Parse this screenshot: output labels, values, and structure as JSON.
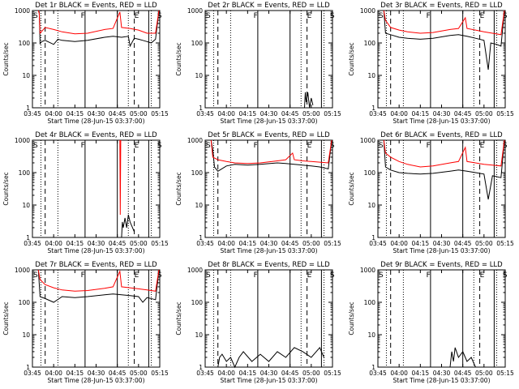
{
  "chart_data": [
    {
      "type": "line",
      "title": "Det 1r BLACK = Events, RED = LLD",
      "xlabel": "Start Time (28-Jun-15 03:37:00)",
      "ylabel": "Counts/sec",
      "yscale": "log",
      "ylim": [
        1,
        1000
      ],
      "xticks": [
        "03:45",
        "04:00",
        "04:15",
        "04:30",
        "04:45",
        "05:00",
        "05:15"
      ],
      "markers": [
        "S",
        "F",
        "E",
        "S"
      ],
      "series": [
        {
          "color": "#000000",
          "points": [
            [
              3.82,
              1000
            ],
            [
              3.83,
              900
            ],
            [
              3.84,
              95
            ],
            [
              3.86,
              110
            ],
            [
              3.9,
              120
            ],
            [
              4.0,
              90
            ],
            [
              4.05,
              130
            ],
            [
              4.1,
              120
            ],
            [
              4.25,
              110
            ],
            [
              4.4,
              120
            ],
            [
              4.6,
              150
            ],
            [
              4.7,
              160
            ],
            [
              4.8,
              150
            ],
            [
              4.88,
              160
            ],
            [
              4.9,
              80
            ],
            [
              4.95,
              140
            ],
            [
              5.0,
              130
            ],
            [
              5.05,
              120
            ],
            [
              5.1,
              110
            ],
            [
              5.15,
              100
            ],
            [
              5.2,
              130
            ],
            [
              5.24,
              1000
            ]
          ]
        },
        {
          "color": "#ff0000",
          "points": [
            [
              3.82,
              1000
            ],
            [
              3.83,
              800
            ],
            [
              3.84,
              200
            ],
            [
              3.9,
              300
            ],
            [
              4.0,
              260
            ],
            [
              4.1,
              220
            ],
            [
              4.25,
              190
            ],
            [
              4.4,
              200
            ],
            [
              4.6,
              260
            ],
            [
              4.7,
              280
            ],
            [
              4.78,
              900
            ],
            [
              4.8,
              300
            ],
            [
              4.9,
              280
            ],
            [
              5.0,
              250
            ],
            [
              5.1,
              200
            ],
            [
              5.2,
              200
            ],
            [
              5.24,
              1000
            ]
          ]
        }
      ]
    },
    {
      "type": "line",
      "title": "Det 2r BLACK = Events, RED = LLD",
      "xlabel": "Start Time (28-Jun-15 03:37:00)",
      "ylabel": "Counts/sec",
      "yscale": "log",
      "ylim": [
        1,
        1000
      ],
      "xticks": [
        "03:45",
        "04:00",
        "04:15",
        "04:30",
        "04:45",
        "05:00",
        "05:15"
      ],
      "markers": [
        "S",
        "F",
        "E",
        "S"
      ],
      "series": [
        {
          "color": "#000000",
          "points": [
            [
              4.92,
              1
            ],
            [
              4.93,
              3
            ],
            [
              4.94,
              1.5
            ],
            [
              4.96,
              3
            ],
            [
              4.98,
              1
            ],
            [
              5.0,
              2
            ],
            [
              5.02,
              1.2
            ]
          ]
        }
      ]
    },
    {
      "type": "line",
      "title": "Det 3r BLACK = Events, RED = LLD",
      "xlabel": "Start Time (28-Jun-15 03:37:00)",
      "ylabel": "Counts/sec",
      "yscale": "log",
      "ylim": [
        1,
        1000
      ],
      "xticks": [
        "03:45",
        "04:00",
        "04:15",
        "04:30",
        "04:45",
        "05:00",
        "05:15"
      ],
      "markers": [
        "S",
        "F",
        "E",
        "S"
      ],
      "series": [
        {
          "color": "#000000",
          "points": [
            [
              3.82,
              1000
            ],
            [
              3.84,
              200
            ],
            [
              3.9,
              180
            ],
            [
              4.0,
              150
            ],
            [
              4.1,
              140
            ],
            [
              4.25,
              130
            ],
            [
              4.4,
              140
            ],
            [
              4.6,
              170
            ],
            [
              4.7,
              180
            ],
            [
              4.8,
              160
            ],
            [
              4.9,
              140
            ],
            [
              5.0,
              120
            ],
            [
              5.05,
              15
            ],
            [
              5.08,
              100
            ],
            [
              5.15,
              90
            ],
            [
              5.2,
              80
            ],
            [
              5.24,
              1000
            ]
          ]
        },
        {
          "color": "#ff0000",
          "points": [
            [
              3.82,
              1000
            ],
            [
              3.84,
              500
            ],
            [
              3.9,
              300
            ],
            [
              4.0,
              250
            ],
            [
              4.1,
              220
            ],
            [
              4.25,
              200
            ],
            [
              4.4,
              210
            ],
            [
              4.6,
              260
            ],
            [
              4.7,
              280
            ],
            [
              4.78,
              600
            ],
            [
              4.8,
              280
            ],
            [
              4.9,
              250
            ],
            [
              5.0,
              220
            ],
            [
              5.1,
              200
            ],
            [
              5.2,
              180
            ],
            [
              5.24,
              1000
            ]
          ]
        }
      ]
    },
    {
      "type": "line",
      "title": "Det 4r BLACK = Events, RED = LLD",
      "xlabel": "Start Time (28-Jun-15 03:37:00)",
      "ylabel": "Counts/sec",
      "yscale": "log",
      "ylim": [
        1,
        1000
      ],
      "xticks": [
        "03:45",
        "04:00",
        "04:15",
        "04:30",
        "04:45",
        "05:00",
        "05:15"
      ],
      "markers": [
        "S",
        "F",
        "E",
        "S"
      ],
      "series": [
        {
          "color": "#000000",
          "points": [
            [
              4.8,
              1
            ],
            [
              4.81,
              3
            ],
            [
              4.82,
              2
            ],
            [
              4.84,
              4
            ],
            [
              4.86,
              2
            ],
            [
              4.88,
              5
            ],
            [
              4.9,
              3
            ],
            [
              4.95,
              1.5
            ]
          ]
        },
        {
          "color": "#ff0000",
          "points": [
            [
              4.78,
              1000
            ],
            [
              4.785,
              5
            ],
            [
              4.79,
              1000
            ]
          ]
        }
      ]
    },
    {
      "type": "line",
      "title": "Det 5r BLACK = Events, RED = LLD",
      "xlabel": "Start Time (28-Jun-15 03:37:00)",
      "ylabel": "Counts/sec",
      "yscale": "log",
      "ylim": [
        1,
        1000
      ],
      "xticks": [
        "03:45",
        "04:00",
        "04:15",
        "04:30",
        "04:45",
        "05:00",
        "05:15"
      ],
      "markers": [
        "S",
        "F",
        "E",
        "S"
      ],
      "series": [
        {
          "color": "#000000",
          "points": [
            [
              3.82,
              1000
            ],
            [
              3.84,
              500
            ],
            [
              3.86,
              150
            ],
            [
              3.9,
              110
            ],
            [
              4.0,
              160
            ],
            [
              4.1,
              180
            ],
            [
              4.25,
              170
            ],
            [
              4.4,
              180
            ],
            [
              4.6,
              200
            ],
            [
              4.7,
              190
            ],
            [
              4.8,
              180
            ],
            [
              4.9,
              170
            ],
            [
              5.0,
              160
            ],
            [
              5.1,
              150
            ],
            [
              5.15,
              140
            ],
            [
              5.2,
              130
            ],
            [
              5.24,
              1000
            ]
          ]
        },
        {
          "color": "#ff0000",
          "points": [
            [
              3.82,
              1000
            ],
            [
              3.84,
              300
            ],
            [
              3.9,
              250
            ],
            [
              4.0,
              220
            ],
            [
              4.1,
              200
            ],
            [
              4.25,
              190
            ],
            [
              4.4,
              200
            ],
            [
              4.6,
              230
            ],
            [
              4.7,
              250
            ],
            [
              4.78,
              400
            ],
            [
              4.8,
              250
            ],
            [
              4.9,
              230
            ],
            [
              5.0,
              220
            ],
            [
              5.1,
              210
            ],
            [
              5.2,
              200
            ],
            [
              5.24,
              1000
            ]
          ]
        }
      ]
    },
    {
      "type": "line",
      "title": "Det 6r BLACK = Events, RED = LLD",
      "xlabel": "Start Time (28-Jun-15 03:37:00)",
      "ylabel": "Counts/sec",
      "yscale": "log",
      "ylim": [
        1,
        1000
      ],
      "xticks": [
        "03:45",
        "04:00",
        "04:15",
        "04:30",
        "04:45",
        "05:00",
        "05:15"
      ],
      "markers": [
        "S",
        "F",
        "E",
        "S"
      ],
      "series": [
        {
          "color": "#000000",
          "points": [
            [
              3.82,
              1000
            ],
            [
              3.84,
              150
            ],
            [
              3.9,
              120
            ],
            [
              4.0,
              100
            ],
            [
              4.1,
              95
            ],
            [
              4.25,
              90
            ],
            [
              4.4,
              95
            ],
            [
              4.6,
              110
            ],
            [
              4.7,
              120
            ],
            [
              4.8,
              110
            ],
            [
              4.9,
              100
            ],
            [
              5.0,
              90
            ],
            [
              5.05,
              15
            ],
            [
              5.1,
              80
            ],
            [
              5.2,
              70
            ],
            [
              5.24,
              1000
            ]
          ]
        },
        {
          "color": "#ff0000",
          "points": [
            [
              3.82,
              1000
            ],
            [
              3.84,
              400
            ],
            [
              3.9,
              300
            ],
            [
              4.0,
              220
            ],
            [
              4.1,
              180
            ],
            [
              4.25,
              150
            ],
            [
              4.4,
              160
            ],
            [
              4.6,
              200
            ],
            [
              4.7,
              220
            ],
            [
              4.78,
              600
            ],
            [
              4.8,
              220
            ],
            [
              4.9,
              200
            ],
            [
              5.0,
              180
            ],
            [
              5.1,
              170
            ],
            [
              5.2,
              160
            ],
            [
              5.24,
              1000
            ]
          ]
        }
      ]
    },
    {
      "type": "line",
      "title": "Det 7r BLACK = Events, RED = LLD",
      "xlabel": "Start Time (28-Jun-15 03:37:00)",
      "ylabel": "Counts/sec",
      "yscale": "log",
      "ylim": [
        1,
        1000
      ],
      "xticks": [
        "03:45",
        "04:00",
        "04:15",
        "04:30",
        "04:45",
        "05:00",
        "05:15"
      ],
      "markers": [
        "S",
        "F",
        "E",
        "S"
      ],
      "series": [
        {
          "color": "#000000",
          "points": [
            [
              3.82,
              1000
            ],
            [
              3.84,
              150
            ],
            [
              3.9,
              130
            ],
            [
              4.0,
              100
            ],
            [
              4.1,
              150
            ],
            [
              4.25,
              140
            ],
            [
              4.4,
              150
            ],
            [
              4.6,
              170
            ],
            [
              4.7,
              180
            ],
            [
              4.8,
              170
            ],
            [
              4.9,
              160
            ],
            [
              5.0,
              150
            ],
            [
              5.05,
              100
            ],
            [
              5.1,
              140
            ],
            [
              5.2,
              120
            ],
            [
              5.24,
              1000
            ]
          ]
        },
        {
          "color": "#ff0000",
          "points": [
            [
              3.82,
              1000
            ],
            [
              3.84,
              500
            ],
            [
              3.9,
              350
            ],
            [
              4.0,
              280
            ],
            [
              4.1,
              240
            ],
            [
              4.25,
              220
            ],
            [
              4.4,
              230
            ],
            [
              4.6,
              270
            ],
            [
              4.7,
              300
            ],
            [
              4.78,
              900
            ],
            [
              4.8,
              300
            ],
            [
              4.9,
              280
            ],
            [
              5.0,
              260
            ],
            [
              5.1,
              240
            ],
            [
              5.2,
              220
            ],
            [
              5.24,
              1000
            ]
          ]
        }
      ]
    },
    {
      "type": "line",
      "title": "Det 8r BLACK = Events, RED = LLD",
      "xlabel": "Start Time (28-Jun-15 03:37:00)",
      "ylabel": "Counts/sec",
      "yscale": "log",
      "ylim": [
        1,
        1000
      ],
      "xticks": [
        "03:45",
        "04:00",
        "04:15",
        "04:30",
        "04:45",
        "05:00",
        "05:15"
      ],
      "markers": [
        "S",
        "F",
        "E",
        "S"
      ],
      "series": [
        {
          "color": "#000000",
          "points": [
            [
              3.9,
              1
            ],
            [
              3.92,
              2
            ],
            [
              3.95,
              2.5
            ],
            [
              4.0,
              1.5
            ],
            [
              4.05,
              2
            ],
            [
              4.1,
              1
            ],
            [
              4.15,
              2
            ],
            [
              4.2,
              3
            ],
            [
              4.3,
              1.5
            ],
            [
              4.4,
              2.5
            ],
            [
              4.5,
              1.5
            ],
            [
              4.6,
              3
            ],
            [
              4.7,
              2
            ],
            [
              4.8,
              4
            ],
            [
              4.9,
              3
            ],
            [
              5.0,
              2
            ],
            [
              5.1,
              4
            ],
            [
              5.15,
              2
            ]
          ]
        }
      ]
    },
    {
      "type": "line",
      "title": "Det 9r BLACK = Events, RED = LLD",
      "xlabel": "Start Time (28-Jun-15 03:37:00)",
      "ylabel": "Counts/sec",
      "yscale": "log",
      "ylim": [
        1,
        1000
      ],
      "xticks": [
        "03:45",
        "04:00",
        "04:15",
        "04:30",
        "04:45",
        "05:00",
        "05:15"
      ],
      "markers": [
        "S",
        "F",
        "E",
        "S"
      ],
      "series": [
        {
          "color": "#000000",
          "points": [
            [
              4.6,
              1
            ],
            [
              4.62,
              3
            ],
            [
              4.64,
              1.5
            ],
            [
              4.66,
              4
            ],
            [
              4.7,
              2
            ],
            [
              4.75,
              3
            ],
            [
              4.8,
              1.5
            ],
            [
              4.85,
              2
            ],
            [
              4.9,
              1
            ]
          ]
        }
      ]
    }
  ]
}
